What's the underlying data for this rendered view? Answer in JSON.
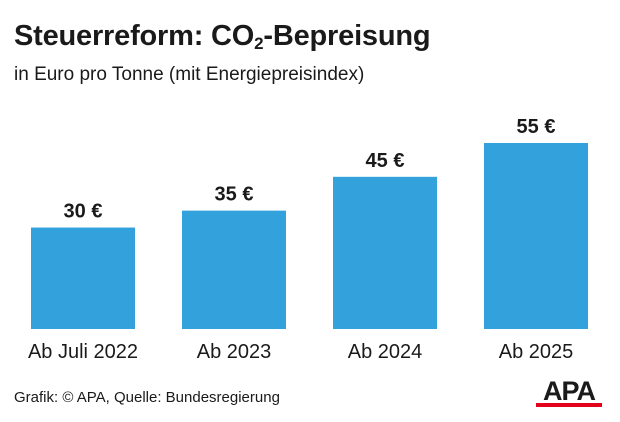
{
  "header": {
    "title_main": "Steuerreform: CO",
    "title_sub": "2",
    "title_end": "-Bepreisung",
    "subtitle": "in Euro pro Tonne (mit Energiepreisindex)"
  },
  "chart_data": {
    "type": "bar",
    "categories": [
      "Ab Juli 2022",
      "Ab 2023",
      "Ab 2024",
      "Ab 2025"
    ],
    "values": [
      30,
      35,
      45,
      55
    ],
    "value_labels": [
      "30 €",
      "35 €",
      "45 €",
      "55 €"
    ],
    "title": "Steuerreform: CO2-Bepreisung",
    "subtitle": "in Euro pro Tonne (mit Energiepreisindex)",
    "xlabel": "",
    "ylabel": "",
    "ylim": [
      0,
      55
    ],
    "grid": false,
    "legend": "none",
    "bar_color": "#33a1dc"
  },
  "footer": {
    "source": "Grafik: © APA, Quelle: Bundesregierung"
  },
  "logo": {
    "text": "APA",
    "color": "#1a1a1a",
    "accent": "#e2001a"
  }
}
